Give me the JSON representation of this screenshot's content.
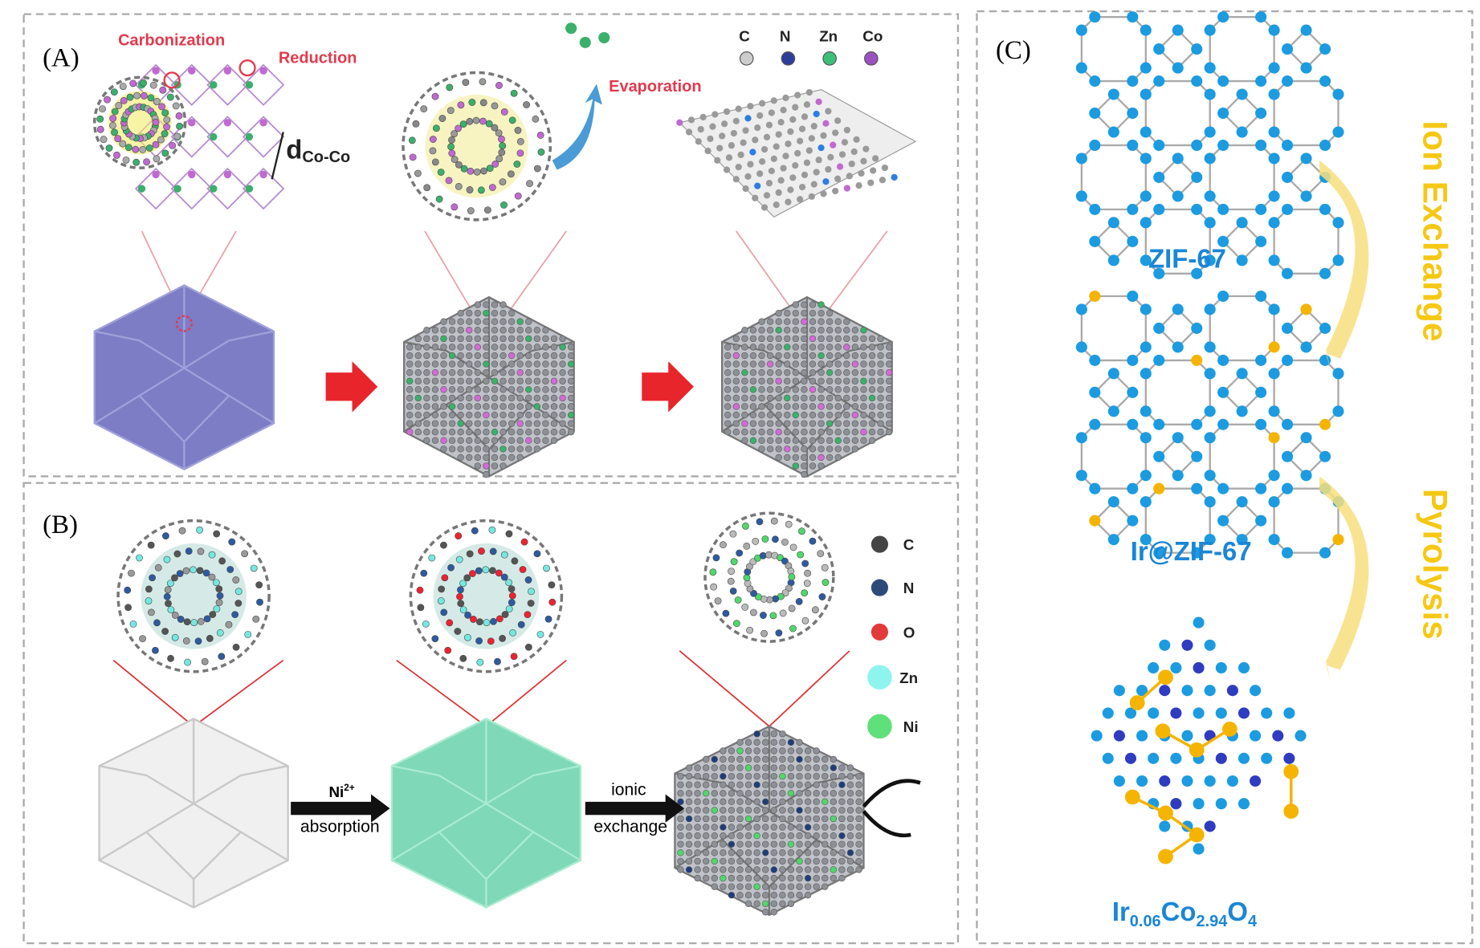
{
  "panels": {
    "a": {
      "label": "(A)",
      "carbonization": "Carbonization",
      "reduction": "Reduction",
      "evaporation": "Evaporation",
      "distance": {
        "main": "d",
        "sub": "Co-Co"
      },
      "legend": [
        "C",
        "N",
        "Zn",
        "Co"
      ]
    },
    "b": {
      "label": "(B)",
      "step1": {
        "ion": "Ni",
        "charge": "2+",
        "text": "absorption"
      },
      "step2": {
        "top": "ionic",
        "bottom": "exchange"
      },
      "legend": [
        "C",
        "N",
        "O",
        "Zn",
        "Ni"
      ]
    },
    "c": {
      "label": "(C)",
      "stage1": "ZIF-67",
      "stage2": "Ir@ZIF-67",
      "stage3": [
        {
          "text": "Ir"
        },
        {
          "sub": "0.06"
        },
        {
          "text": "Co"
        },
        {
          "sub": "2.94"
        },
        {
          "text": "O"
        },
        {
          "sub": "4"
        }
      ],
      "arrow1": "Ion Exchange",
      "arrow2": "Pyrolysis"
    }
  }
}
